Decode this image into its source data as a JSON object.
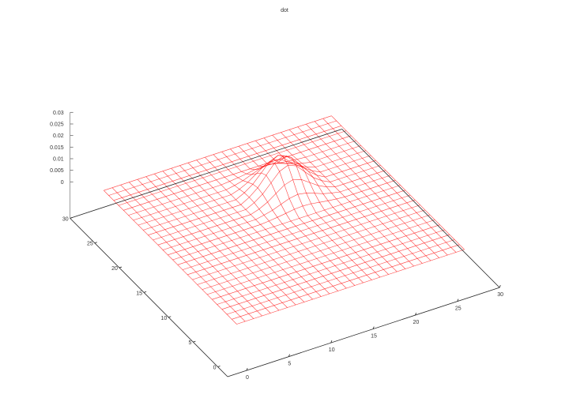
{
  "chart_data": {
    "type": "surface",
    "title": "dot",
    "xlabel": "",
    "ylabel": "",
    "zlabel": "",
    "xlim": [
      -2.25,
      30
    ],
    "ylim": [
      -2,
      30
    ],
    "zlim": [
      -0.0157,
      0.03
    ],
    "xticks": [
      0,
      5,
      10,
      15,
      20,
      25,
      30
    ],
    "yticks": [
      0,
      5,
      10,
      15,
      20,
      25,
      30
    ],
    "zticks": [
      "0",
      "0.005",
      "0.01",
      "0.015",
      "0.02",
      "0.025",
      "0.03"
    ],
    "zticks_values": [
      0,
      0.005,
      0.01,
      0.015,
      0.02,
      0.025,
      0.03
    ],
    "grid_x": [
      0,
      27
    ],
    "grid_y": [
      0,
      27
    ],
    "grid_step": 1,
    "z_default": 0,
    "peak_patch": {
      "x_start": 12,
      "y_start": 14,
      "z": [
        [
          0.0003,
          0.0007,
          0.0012,
          0.0018,
          0.002,
          0.0018,
          0.0012,
          0.0007,
          0.0003
        ],
        [
          0.0007,
          0.0016,
          0.003,
          0.0043,
          0.0049,
          0.0043,
          0.003,
          0.0016,
          0.0007
        ],
        [
          0.0012,
          0.003,
          0.0055,
          0.008,
          0.0091,
          0.008,
          0.0055,
          0.003,
          0.0012
        ],
        [
          0.0018,
          0.0043,
          0.008,
          0.0117,
          0.0132,
          0.0117,
          0.008,
          0.0043,
          0.0018
        ],
        [
          0.002,
          0.0049,
          0.0091,
          0.0132,
          0.015,
          0.0132,
          0.0091,
          0.0049,
          0.002
        ],
        [
          0.0018,
          0.0043,
          0.008,
          0.0117,
          0.0132,
          0.0117,
          0.008,
          0.0043,
          0.0018
        ],
        [
          0.0012,
          0.003,
          0.0055,
          0.008,
          0.0091,
          0.008,
          0.0055,
          0.003,
          0.0012
        ],
        [
          0.0007,
          0.0016,
          0.003,
          0.0043,
          0.0049,
          0.0043,
          0.003,
          0.0016,
          0.0007
        ],
        [
          0.0003,
          0.0007,
          0.0012,
          0.0018,
          0.002,
          0.0018,
          0.0012,
          0.0007,
          0.0003
        ]
      ]
    },
    "surface_color": "#ff0000",
    "axis_color": "#000000",
    "grid": false,
    "legend": "none"
  }
}
